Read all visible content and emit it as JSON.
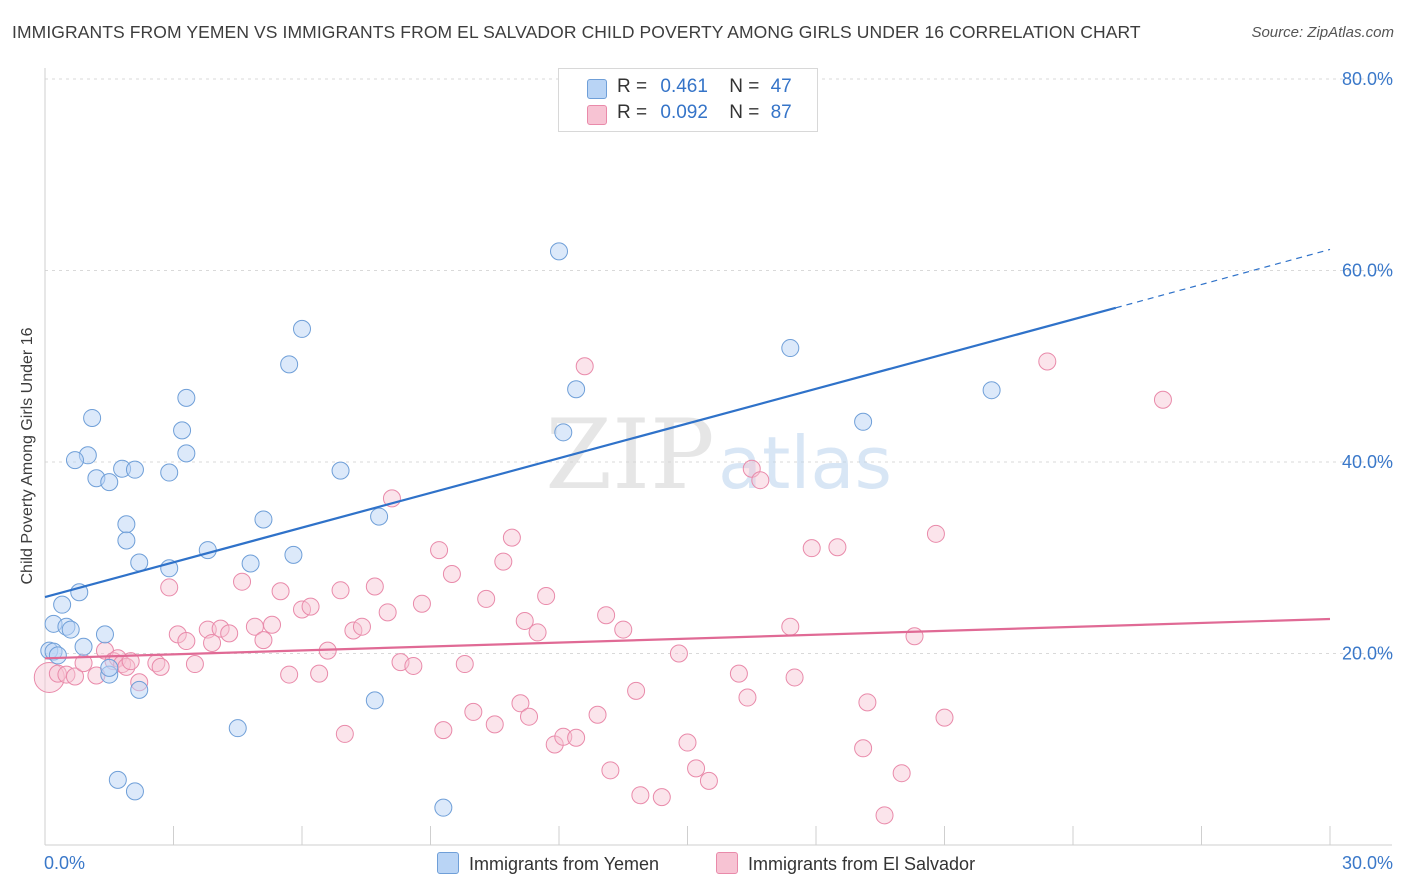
{
  "header": {
    "title": "IMMIGRANTS FROM YEMEN VS IMMIGRANTS FROM EL SALVADOR CHILD POVERTY AMONG GIRLS UNDER 16 CORRELATION CHART",
    "source": "Source: ZipAtlas.com"
  },
  "legend": {
    "rows": [
      {
        "r_label": "R =",
        "r_value": "0.461",
        "n_label": "N =",
        "n_value": "47"
      },
      {
        "r_label": "R =",
        "r_value": "0.092",
        "n_label": "N =",
        "n_value": "87"
      }
    ]
  },
  "watermark": {
    "zip": "ZIP",
    "atlas": "atlas"
  },
  "colors": {
    "yemen_fill": "#b9d4f5",
    "yemen_stroke": "#6f9fd8",
    "yemen_line": "#2f72c9",
    "salvador_fill": "#f7c3d3",
    "salvador_stroke": "#e98aaa",
    "salvador_line": "#e06a95",
    "tick_label": "#3a78c9"
  },
  "chart_data": {
    "type": "scatter",
    "xlabel": "",
    "ylabel": "Child Poverty Among Girls Under 16",
    "xlim": [
      0,
      30
    ],
    "ylim": [
      0,
      80
    ],
    "x_tick_labels": [
      "0.0%",
      "30.0%"
    ],
    "y_tick_values": [
      20,
      40,
      60,
      80
    ],
    "y_tick_labels": [
      "20.0%",
      "40.0%",
      "60.0%",
      "80.0%"
    ],
    "grid": true,
    "series": [
      {
        "name": "Immigrants from Yemen",
        "trend": {
          "x_start": 0,
          "y_start": 25.9,
          "x_end": 25,
          "y_end": 56.1,
          "dashed_to_x": 30,
          "dashed_to_y": 62.2
        },
        "points": [
          [
            0.1,
            20.3
          ],
          [
            0.2,
            20.2
          ],
          [
            0.2,
            23.1
          ],
          [
            0.3,
            19.8
          ],
          [
            0.4,
            25.1
          ],
          [
            0.5,
            22.8
          ],
          [
            0.6,
            22.5
          ],
          [
            0.8,
            26.4
          ],
          [
            0.9,
            20.7
          ],
          [
            1.0,
            40.7
          ],
          [
            1.1,
            44.6
          ],
          [
            1.2,
            38.3
          ],
          [
            0.7,
            40.2
          ],
          [
            1.4,
            22.0
          ],
          [
            1.5,
            17.8
          ],
          [
            1.5,
            18.5
          ],
          [
            1.5,
            37.9
          ],
          [
            1.8,
            39.3
          ],
          [
            1.9,
            33.5
          ],
          [
            1.9,
            31.8
          ],
          [
            2.1,
            39.2
          ],
          [
            2.2,
            29.5
          ],
          [
            2.2,
            16.2
          ],
          [
            1.7,
            6.8
          ],
          [
            2.1,
            5.6
          ],
          [
            2.9,
            38.9
          ],
          [
            2.9,
            28.9
          ],
          [
            3.2,
            43.3
          ],
          [
            3.3,
            40.9
          ],
          [
            3.3,
            46.7
          ],
          [
            3.8,
            30.8
          ],
          [
            4.5,
            12.2
          ],
          [
            4.8,
            29.4
          ],
          [
            5.1,
            34.0
          ],
          [
            5.7,
            50.2
          ],
          [
            5.8,
            30.3
          ],
          [
            6.0,
            53.9
          ],
          [
            6.9,
            39.1
          ],
          [
            7.8,
            34.3
          ],
          [
            7.7,
            15.1
          ],
          [
            9.3,
            3.9
          ],
          [
            12.0,
            62.0
          ],
          [
            12.1,
            43.1
          ],
          [
            12.4,
            47.6
          ],
          [
            17.4,
            51.9
          ],
          [
            19.1,
            44.2
          ],
          [
            22.1,
            47.5
          ]
        ]
      },
      {
        "name": "Immigrants from El Salvador",
        "trend": {
          "x_start": 0,
          "y_start": 19.5,
          "x_end": 30,
          "y_end": 23.6
        },
        "points": [
          [
            0.1,
            17.5
          ],
          [
            0.3,
            17.9
          ],
          [
            0.5,
            17.8
          ],
          [
            0.7,
            17.6
          ],
          [
            0.9,
            19.0
          ],
          [
            1.2,
            17.7
          ],
          [
            1.4,
            20.3
          ],
          [
            1.6,
            19.2
          ],
          [
            1.7,
            19.5
          ],
          [
            1.8,
            18.9
          ],
          [
            1.9,
            18.6
          ],
          [
            2.0,
            19.2
          ],
          [
            2.2,
            17.0
          ],
          [
            2.6,
            19.0
          ],
          [
            2.7,
            18.6
          ],
          [
            2.9,
            26.9
          ],
          [
            3.1,
            22.0
          ],
          [
            3.3,
            21.3
          ],
          [
            3.5,
            18.9
          ],
          [
            3.8,
            22.5
          ],
          [
            3.9,
            21.1
          ],
          [
            4.1,
            22.6
          ],
          [
            4.3,
            22.1
          ],
          [
            4.6,
            27.5
          ],
          [
            4.9,
            22.8
          ],
          [
            5.1,
            21.4
          ],
          [
            5.3,
            23.0
          ],
          [
            5.5,
            26.5
          ],
          [
            5.7,
            17.8
          ],
          [
            6.0,
            24.6
          ],
          [
            6.2,
            24.9
          ],
          [
            6.4,
            17.9
          ],
          [
            6.6,
            20.3
          ],
          [
            6.9,
            26.6
          ],
          [
            7.0,
            11.6
          ],
          [
            7.2,
            22.4
          ],
          [
            7.4,
            22.8
          ],
          [
            7.7,
            27.0
          ],
          [
            8.0,
            24.3
          ],
          [
            8.1,
            36.2
          ],
          [
            8.3,
            19.1
          ],
          [
            8.6,
            18.7
          ],
          [
            8.8,
            25.2
          ],
          [
            9.2,
            30.8
          ],
          [
            9.3,
            12.0
          ],
          [
            9.5,
            28.3
          ],
          [
            9.8,
            18.9
          ],
          [
            10.0,
            13.9
          ],
          [
            10.3,
            25.7
          ],
          [
            10.5,
            12.6
          ],
          [
            10.7,
            29.6
          ],
          [
            10.9,
            32.1
          ],
          [
            11.1,
            14.8
          ],
          [
            11.2,
            23.4
          ],
          [
            11.3,
            13.4
          ],
          [
            11.5,
            22.2
          ],
          [
            11.7,
            26.0
          ],
          [
            11.9,
            10.5
          ],
          [
            12.1,
            11.3
          ],
          [
            12.4,
            11.2
          ],
          [
            12.6,
            50.0
          ],
          [
            12.9,
            13.6
          ],
          [
            13.1,
            24.0
          ],
          [
            13.2,
            7.8
          ],
          [
            13.5,
            22.5
          ],
          [
            13.8,
            16.1
          ],
          [
            13.9,
            5.2
          ],
          [
            14.4,
            5.0
          ],
          [
            14.8,
            20.0
          ],
          [
            15.0,
            10.7
          ],
          [
            15.2,
            8.0
          ],
          [
            15.5,
            6.7
          ],
          [
            16.2,
            17.9
          ],
          [
            16.4,
            15.4
          ],
          [
            16.5,
            39.3
          ],
          [
            16.7,
            38.1
          ],
          [
            17.4,
            22.8
          ],
          [
            17.5,
            17.5
          ],
          [
            17.9,
            31.0
          ],
          [
            18.5,
            31.1
          ],
          [
            19.1,
            10.1
          ],
          [
            19.2,
            14.9
          ],
          [
            19.6,
            3.1
          ],
          [
            20.0,
            7.5
          ],
          [
            20.3,
            21.8
          ],
          [
            20.8,
            32.5
          ],
          [
            21.0,
            13.3
          ],
          [
            23.4,
            50.5
          ],
          [
            26.1,
            46.5
          ]
        ]
      }
    ]
  },
  "bottom_legend": {
    "items": [
      "Immigrants from Yemen",
      "Immigrants from El Salvador"
    ]
  }
}
